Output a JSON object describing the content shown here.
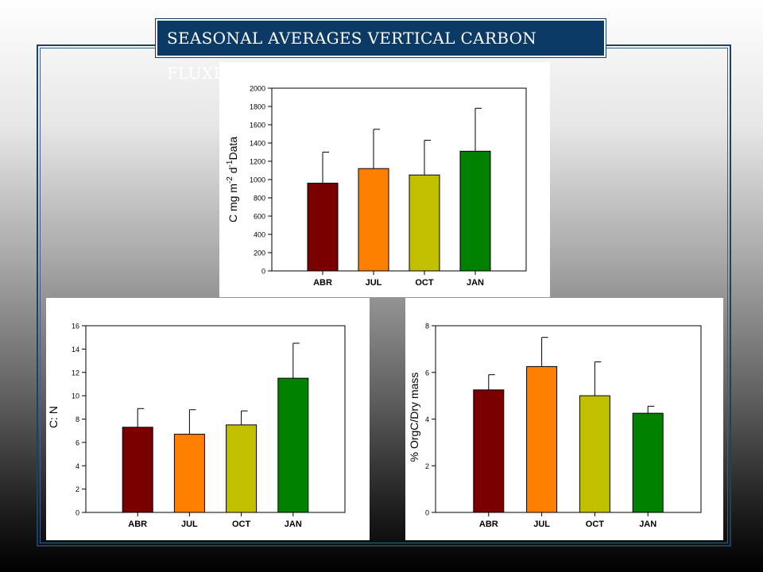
{
  "slide": {
    "title": "SEASONAL AVERAGES VERTICAL CARBON FLUXES",
    "title_bg": "#0b3a66",
    "title_color": "#ffffff"
  },
  "bar_colors": [
    "#7a0000",
    "#ff8000",
    "#c0c000",
    "#008000"
  ],
  "chart_data": [
    {
      "type": "bar",
      "categories": [
        "ABR",
        "JUL",
        "OCT",
        "JAN"
      ],
      "values": [
        960,
        1120,
        1050,
        1310
      ],
      "errors": [
        340,
        430,
        380,
        470
      ],
      "ylabel": "C mg m-2 d-1 Data",
      "ylim": [
        0,
        2000
      ],
      "yticks": [
        0,
        200,
        400,
        600,
        800,
        1000,
        1200,
        1400,
        1600,
        1800,
        2000
      ]
    },
    {
      "type": "bar",
      "categories": [
        "ABR",
        "JUL",
        "OCT",
        "JAN"
      ],
      "values": [
        7.3,
        6.7,
        7.5,
        11.5
      ],
      "errors": [
        1.6,
        2.1,
        1.2,
        3.0
      ],
      "ylabel": "C: N",
      "ylim": [
        0,
        16
      ],
      "yticks": [
        0,
        2,
        4,
        6,
        8,
        10,
        12,
        14,
        16
      ]
    },
    {
      "type": "bar",
      "categories": [
        "ABR",
        "JUL",
        "OCT",
        "JAN"
      ],
      "values": [
        5.25,
        6.25,
        5.0,
        4.25
      ],
      "errors": [
        0.65,
        1.25,
        1.45,
        0.3
      ],
      "ylabel": "% OrgC/Dry mass",
      "ylim": [
        0,
        8
      ],
      "yticks": [
        0,
        2,
        4,
        6,
        8
      ]
    }
  ]
}
